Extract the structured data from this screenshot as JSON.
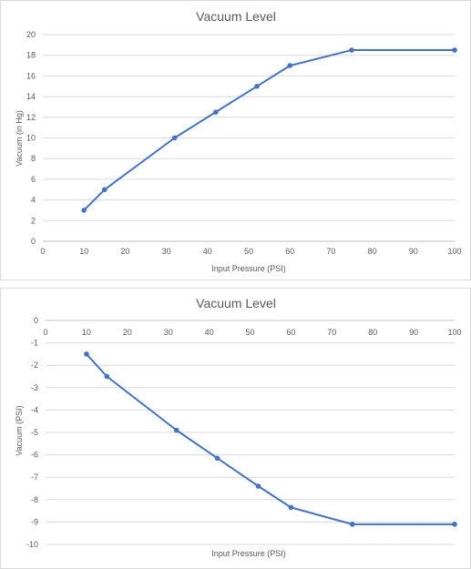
{
  "chart_data": [
    {
      "type": "line",
      "title": "Vacuum Level",
      "xlabel": "Input Pressure (PSI)",
      "ylabel": "Vacuum (in Hg)",
      "xlim": [
        0,
        100
      ],
      "ylim": [
        0,
        20
      ],
      "x_ticks": [
        0,
        10,
        20,
        30,
        40,
        50,
        60,
        70,
        80,
        90,
        100
      ],
      "y_ticks": [
        0,
        2,
        4,
        6,
        8,
        10,
        12,
        14,
        16,
        18,
        20
      ],
      "x_axis_position": "bottom",
      "grid": true,
      "series": [
        {
          "color": "#4472c4",
          "x": [
            10,
            15,
            32,
            42,
            52,
            60,
            75,
            100
          ],
          "y": [
            3,
            5,
            10,
            12.5,
            15,
            17,
            18.5,
            18.5
          ]
        }
      ]
    },
    {
      "type": "line",
      "title": "Vacuum Level",
      "xlabel": "Input Pressure (PSI)",
      "ylabel": "Vacuum (PSI)",
      "xlim": [
        0,
        100
      ],
      "ylim": [
        -10,
        0
      ],
      "x_ticks": [
        0,
        10,
        20,
        30,
        40,
        50,
        60,
        70,
        80,
        90,
        100
      ],
      "y_ticks": [
        -10,
        -9,
        -8,
        -7,
        -6,
        -5,
        -4,
        -3,
        -2,
        -1,
        0
      ],
      "x_axis_position": "top",
      "grid": true,
      "series": [
        {
          "color": "#4472c4",
          "x": [
            10,
            15,
            32,
            42,
            52,
            60,
            75,
            100
          ],
          "y": [
            -1.5,
            -2.5,
            -4.9,
            -6.15,
            -7.4,
            -8.35,
            -9.1,
            -9.1
          ]
        }
      ]
    }
  ]
}
